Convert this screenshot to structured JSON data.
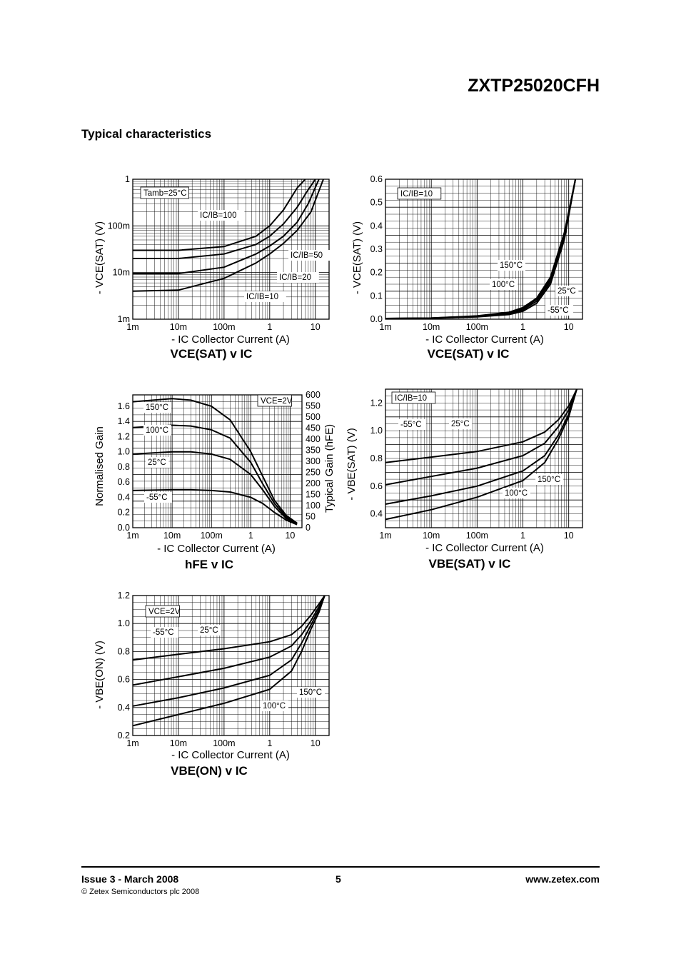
{
  "header": {
    "part_number": "ZXTP25020CFH",
    "section_title": "Typical characteristics"
  },
  "footer": {
    "issue": "Issue 3 - March 2008",
    "page": "5",
    "website": "www.zetex.com",
    "copyright": "© Zetex Semiconductors plc 2008"
  },
  "chart_data": [
    {
      "type": "line",
      "title": "VCE(SAT) v IC",
      "xlabel": "- IC Collector Current (A)",
      "ylabel": "- VCE(SAT) (V)",
      "xscale": "log",
      "yscale": "log",
      "xlim": [
        0.001,
        20
      ],
      "ylim": [
        0.001,
        1
      ],
      "xticks": [
        0.001,
        0.01,
        0.1,
        1,
        10
      ],
      "xtick_labels": [
        "1m",
        "10m",
        "100m",
        "1",
        "10"
      ],
      "yticks": [
        0.001,
        0.01,
        0.1,
        1
      ],
      "ytick_labels": [
        "1m",
        "10m",
        "100m",
        "1"
      ],
      "annotations": [
        "Tamb=25°C"
      ],
      "series": [
        {
          "name": "IC/IB=100",
          "x": [
            0.001,
            0.01,
            0.1,
            0.5,
            1,
            2,
            4,
            6
          ],
          "y": [
            0.03,
            0.03,
            0.036,
            0.06,
            0.1,
            0.22,
            0.65,
            1.0
          ]
        },
        {
          "name": "IC/IB=50",
          "x": [
            0.001,
            0.01,
            0.1,
            0.5,
            1,
            2,
            4,
            7,
            10
          ],
          "y": [
            0.02,
            0.02,
            0.025,
            0.04,
            0.06,
            0.11,
            0.25,
            0.6,
            1.0
          ]
        },
        {
          "name": "IC/IB=20",
          "x": [
            0.001,
            0.01,
            0.1,
            0.5,
            1,
            2,
            4,
            7,
            12
          ],
          "y": [
            0.0095,
            0.0095,
            0.013,
            0.025,
            0.037,
            0.06,
            0.12,
            0.3,
            1.0
          ]
        },
        {
          "name": "IC/IB=10",
          "x": [
            0.001,
            0.01,
            0.1,
            0.5,
            1,
            2,
            4,
            8,
            15
          ],
          "y": [
            0.004,
            0.0042,
            0.0075,
            0.016,
            0.025,
            0.042,
            0.08,
            0.2,
            1.0
          ]
        }
      ]
    },
    {
      "type": "line",
      "title": "VCE(SAT) v IC",
      "xlabel": "- IC Collector Current (A)",
      "ylabel": "- VCE(SAT) (V)",
      "xscale": "log",
      "xlim": [
        0.001,
        20
      ],
      "ylim": [
        0.0,
        0.6
      ],
      "xticks": [
        0.001,
        0.01,
        0.1,
        1,
        10
      ],
      "xtick_labels": [
        "1m",
        "10m",
        "100m",
        "1",
        "10"
      ],
      "yticks": [
        0.0,
        0.1,
        0.2,
        0.3,
        0.4,
        0.5,
        0.6
      ],
      "ytick_labels": [
        "0.0",
        "0.1",
        "0.2",
        "0.3",
        "0.4",
        "0.5",
        "0.6"
      ],
      "annotations": [
        "IC/IB=10"
      ],
      "series": [
        {
          "name": "150°C",
          "x": [
            0.001,
            0.01,
            0.1,
            0.5,
            1,
            2,
            4,
            8,
            14
          ],
          "y": [
            0.003,
            0.005,
            0.014,
            0.03,
            0.05,
            0.09,
            0.18,
            0.37,
            0.6
          ]
        },
        {
          "name": "100°C",
          "x": [
            0.001,
            0.01,
            0.1,
            0.5,
            1,
            2,
            4,
            8,
            14
          ],
          "y": [
            0.003,
            0.005,
            0.013,
            0.028,
            0.045,
            0.085,
            0.17,
            0.36,
            0.6
          ]
        },
        {
          "name": "25°C",
          "x": [
            0.001,
            0.01,
            0.1,
            0.5,
            1,
            2,
            4,
            8,
            14
          ],
          "y": [
            0.003,
            0.004,
            0.011,
            0.024,
            0.04,
            0.077,
            0.16,
            0.35,
            0.6
          ]
        },
        {
          "name": "-55°C",
          "x": [
            0.001,
            0.01,
            0.1,
            0.5,
            1,
            2,
            4,
            8,
            14
          ],
          "y": [
            0.002,
            0.004,
            0.01,
            0.02,
            0.034,
            0.068,
            0.15,
            0.34,
            0.6
          ]
        }
      ]
    },
    {
      "type": "line",
      "title": "hFE v IC",
      "xlabel": "- IC Collector Current (A)",
      "ylabel": "Normalised Gain",
      "y2label": "Typical Gain (hFE)",
      "xscale": "log",
      "xlim": [
        0.001,
        20
      ],
      "ylim": [
        0.0,
        1.75
      ],
      "y2lim": [
        0,
        600
      ],
      "xticks": [
        0.001,
        0.01,
        0.1,
        1,
        10
      ],
      "xtick_labels": [
        "1m",
        "10m",
        "100m",
        "1",
        "10"
      ],
      "yticks": [
        0.0,
        0.2,
        0.4,
        0.6,
        0.8,
        1.0,
        1.2,
        1.4,
        1.6
      ],
      "ytick_labels": [
        "0.0",
        "0.2",
        "0.4",
        "0.6",
        "0.8",
        "1.0",
        "1.2",
        "1.4",
        "1.6"
      ],
      "y2ticks": [
        0,
        50,
        100,
        150,
        200,
        250,
        300,
        350,
        400,
        450,
        500,
        550,
        600
      ],
      "y2tick_labels": [
        "0",
        "50",
        "100",
        "150",
        "200",
        "250",
        "300",
        "350",
        "400",
        "450",
        "500",
        "550",
        "600"
      ],
      "annotations": [
        "VCE=2V"
      ],
      "series": [
        {
          "name": "150°C",
          "x": [
            0.001,
            0.01,
            0.03,
            0.1,
            0.3,
            1,
            2,
            4,
            8,
            15
          ],
          "y": [
            1.66,
            1.7,
            1.68,
            1.6,
            1.42,
            1.0,
            0.68,
            0.36,
            0.16,
            0.06
          ]
        },
        {
          "name": "100°C",
          "x": [
            0.001,
            0.01,
            0.03,
            0.1,
            0.3,
            1,
            2,
            4,
            8,
            15
          ],
          "y": [
            1.32,
            1.35,
            1.34,
            1.29,
            1.18,
            0.86,
            0.58,
            0.32,
            0.14,
            0.05
          ]
        },
        {
          "name": "25°C",
          "x": [
            0.001,
            0.01,
            0.03,
            0.1,
            0.3,
            1,
            2,
            4,
            8,
            15
          ],
          "y": [
            0.97,
            1.0,
            1.0,
            0.97,
            0.9,
            0.7,
            0.5,
            0.28,
            0.12,
            0.05
          ]
        },
        {
          "name": "-55°C",
          "x": [
            0.001,
            0.01,
            0.03,
            0.1,
            0.3,
            1,
            2,
            4,
            8,
            15
          ],
          "y": [
            0.49,
            0.5,
            0.5,
            0.49,
            0.47,
            0.4,
            0.32,
            0.2,
            0.1,
            0.04
          ]
        }
      ]
    },
    {
      "type": "line",
      "title": "VBE(SAT) v IC",
      "xlabel": "- IC Collector Current (A)",
      "ylabel": "- VBE(SAT) (V)",
      "xscale": "log",
      "xlim": [
        0.001,
        20
      ],
      "ylim": [
        0.3,
        1.3
      ],
      "xticks": [
        0.001,
        0.01,
        0.1,
        1,
        10
      ],
      "xtick_labels": [
        "1m",
        "10m",
        "100m",
        "1",
        "10"
      ],
      "yticks": [
        0.4,
        0.6,
        0.8,
        1.0,
        1.2
      ],
      "ytick_labels": [
        "0.4",
        "0.6",
        "0.8",
        "1.0",
        "1.2"
      ],
      "annotations": [
        "IC/IB=10"
      ],
      "series": [
        {
          "name": "-55°C",
          "x": [
            0.001,
            0.01,
            0.1,
            1,
            3,
            6,
            10,
            15
          ],
          "y": [
            0.77,
            0.81,
            0.85,
            0.92,
            0.99,
            1.08,
            1.18,
            1.3
          ]
        },
        {
          "name": "25°C",
          "x": [
            0.001,
            0.01,
            0.1,
            1,
            3,
            6,
            10,
            15
          ],
          "y": [
            0.61,
            0.67,
            0.73,
            0.82,
            0.91,
            1.03,
            1.15,
            1.3
          ]
        },
        {
          "name": "100°C",
          "x": [
            0.001,
            0.01,
            0.1,
            1,
            3,
            6,
            10,
            15
          ],
          "y": [
            0.47,
            0.53,
            0.6,
            0.71,
            0.82,
            0.97,
            1.12,
            1.3
          ]
        },
        {
          "name": "150°C",
          "x": [
            0.001,
            0.01,
            0.1,
            1,
            3,
            6,
            10,
            15
          ],
          "y": [
            0.36,
            0.43,
            0.52,
            0.64,
            0.77,
            0.94,
            1.1,
            1.3
          ]
        }
      ]
    },
    {
      "type": "line",
      "title": "VBE(ON) v IC",
      "xlabel": "- IC Collector Current (A)",
      "ylabel": "- VBE(ON) (V)",
      "xscale": "log",
      "xlim": [
        0.001,
        20
      ],
      "ylim": [
        0.2,
        1.2
      ],
      "xticks": [
        0.001,
        0.01,
        0.1,
        1,
        10
      ],
      "xtick_labels": [
        "1m",
        "10m",
        "100m",
        "1",
        "10"
      ],
      "yticks": [
        0.2,
        0.4,
        0.6,
        0.8,
        1.0,
        1.2
      ],
      "ytick_labels": [
        "0.2",
        "0.4",
        "0.6",
        "0.8",
        "1.0",
        "1.2"
      ],
      "annotations": [
        "VCE=2V"
      ],
      "series": [
        {
          "name": "-55°C",
          "x": [
            0.001,
            0.01,
            0.1,
            1,
            3,
            5,
            8,
            12,
            16
          ],
          "y": [
            0.74,
            0.78,
            0.82,
            0.87,
            0.92,
            0.98,
            1.06,
            1.14,
            1.2
          ]
        },
        {
          "name": "25°C",
          "x": [
            0.001,
            0.01,
            0.1,
            1,
            3,
            5,
            8,
            12,
            16
          ],
          "y": [
            0.56,
            0.62,
            0.68,
            0.76,
            0.84,
            0.92,
            1.02,
            1.12,
            1.2
          ]
        },
        {
          "name": "150°C",
          "x": [
            0.001,
            0.01,
            0.1,
            1,
            3,
            5,
            8,
            12,
            16
          ],
          "y": [
            0.41,
            0.47,
            0.54,
            0.63,
            0.74,
            0.86,
            0.99,
            1.1,
            1.2
          ]
        },
        {
          "name": "100°C",
          "x": [
            0.001,
            0.01,
            0.1,
            1,
            3,
            5,
            8,
            12,
            16
          ],
          "y": [
            0.27,
            0.35,
            0.43,
            0.53,
            0.66,
            0.8,
            0.96,
            1.08,
            1.2
          ]
        }
      ]
    }
  ]
}
